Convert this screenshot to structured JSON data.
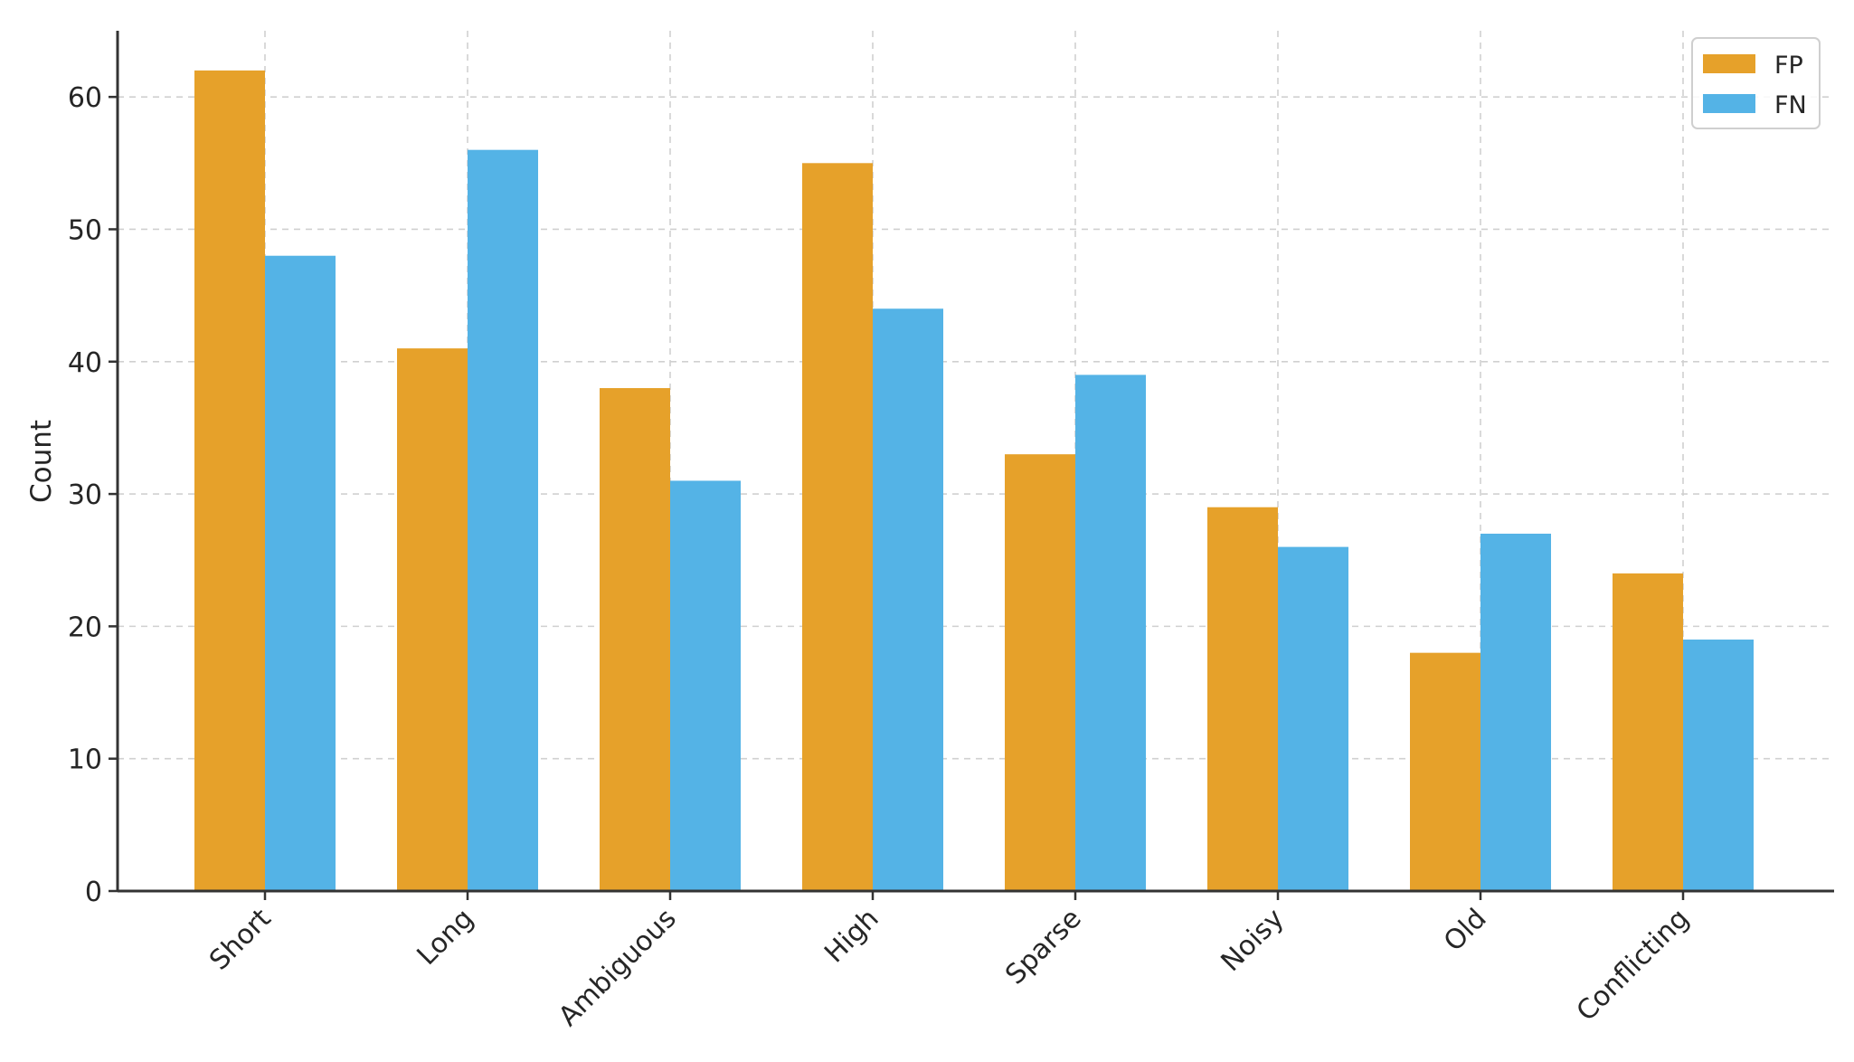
{
  "chart_data": {
    "type": "bar",
    "title": "",
    "xlabel": "",
    "ylabel": "Count",
    "ylim": [
      0,
      65
    ],
    "yticks": [
      0,
      10,
      20,
      30,
      40,
      50,
      60
    ],
    "grid": true,
    "legend_position": "top-right",
    "categories": [
      "Short",
      "Long",
      "Ambiguous",
      "High",
      "Sparse",
      "Noisy",
      "Old",
      "Conflicting"
    ],
    "series": [
      {
        "name": "FP",
        "color": "#E6A12A",
        "values": [
          62,
          41,
          38,
          55,
          33,
          29,
          18,
          24
        ]
      },
      {
        "name": "FN",
        "color": "#54B3E6",
        "values": [
          48,
          56,
          31,
          44,
          39,
          26,
          27,
          19
        ]
      }
    ]
  }
}
